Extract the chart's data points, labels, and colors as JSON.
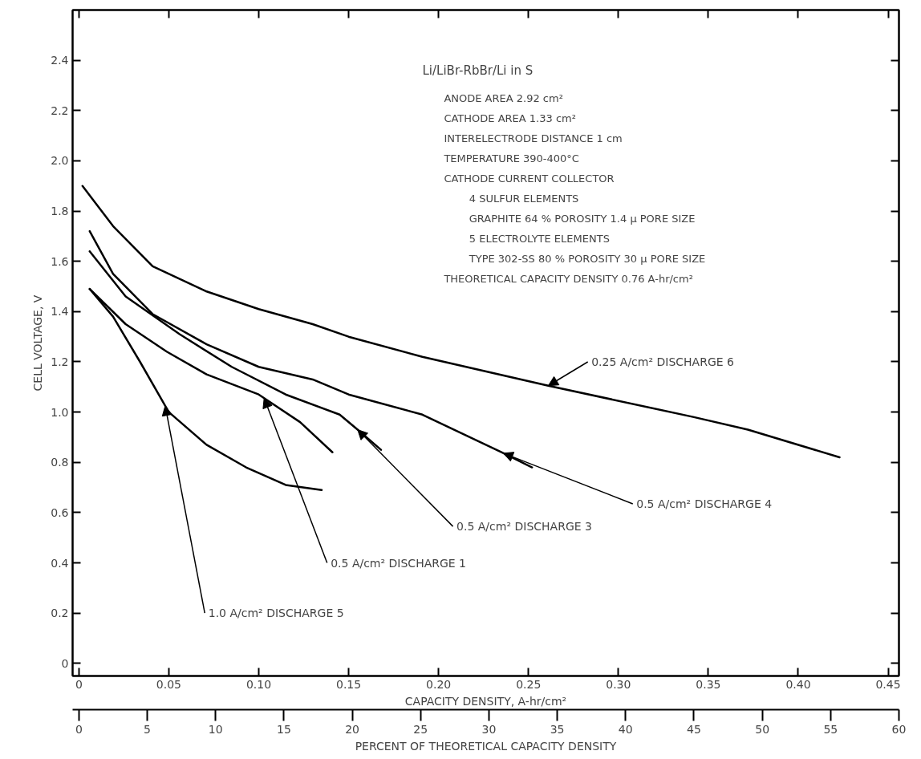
{
  "chart_data": {
    "type": "line",
    "xlabel": "CAPACITY DENSITY, A-hr/cm²",
    "ylabel": "CELL VOLTAGE, V",
    "x2label": "PERCENT OF THEORETICAL CAPACITY DENSITY",
    "xlim": [
      -0.0035,
      0.456
    ],
    "ylim": [
      -0.05,
      2.6
    ],
    "x2lim": [
      -0.46,
      60.0
    ],
    "xticks": [
      0,
      0.05,
      {
        "value": 0.1,
        "label": "0.10"
      },
      0.15,
      {
        "value": 0.2,
        "label": "0.20"
      },
      0.25,
      {
        "value": 0.3,
        "label": "0.30"
      },
      0.35,
      {
        "value": 0.4,
        "label": "0.40"
      },
      0.45
    ],
    "yticks": [
      0,
      0.2,
      0.4,
      0.6,
      0.8,
      {
        "value": 1,
        "label": "1.0"
      },
      1.2,
      1.4,
      1.6,
      1.8,
      {
        "value": 2,
        "label": "2.0"
      },
      2.2,
      2.4
    ],
    "x2ticks": [
      0,
      5,
      10,
      15,
      20,
      25,
      30,
      35,
      40,
      45,
      50,
      55,
      60
    ],
    "grid": false,
    "marker": "none",
    "line_style": "solid",
    "series": [
      {
        "name": "0.25 A/cm² DISCHARGE 6",
        "color": "#000000",
        "x": [
          0.002,
          0.019,
          0.041,
          0.071,
          0.1,
          0.13,
          0.15,
          0.191,
          0.261,
          0.342,
          0.372,
          0.423
        ],
        "values": [
          1.9,
          1.74,
          1.58,
          1.48,
          1.41,
          1.35,
          1.3,
          1.22,
          1.105,
          0.98,
          0.93,
          0.82
        ]
      },
      {
        "name": "0.5 A/cm² DISCHARGE 4",
        "color": "#000000",
        "x": [
          0.006,
          0.019,
          0.041,
          0.071,
          0.1,
          0.13,
          0.15,
          0.191,
          0.235,
          0.252
        ],
        "values": [
          1.72,
          1.55,
          1.39,
          1.27,
          1.18,
          1.13,
          1.07,
          0.99,
          0.84,
          0.78
        ]
      },
      {
        "name": "0.5 A/cm² DISCHARGE 3",
        "color": "#000000",
        "x": [
          0.006,
          0.026,
          0.056,
          0.085,
          0.115,
          0.145,
          0.155,
          0.168
        ],
        "values": [
          1.64,
          1.46,
          1.31,
          1.18,
          1.07,
          0.99,
          0.93,
          0.85
        ]
      },
      {
        "name": "0.5 A/cm² DISCHARGE 1",
        "color": "#000000",
        "x": [
          0.006,
          0.026,
          0.049,
          0.071,
          0.1,
          0.123,
          0.141
        ],
        "values": [
          1.49,
          1.35,
          1.24,
          1.15,
          1.07,
          0.96,
          0.84
        ]
      },
      {
        "name": "1.0 A/cm² DISCHARGE 5",
        "color": "#000000",
        "x": [
          0.006,
          0.019,
          0.034,
          0.05,
          0.071,
          0.093,
          0.115,
          0.135
        ],
        "values": [
          1.49,
          1.38,
          1.2,
          1.0,
          0.87,
          0.78,
          0.71,
          0.69
        ]
      }
    ],
    "annotations": [
      "Li/LiBr-RbBr/Li in S",
      "ANODE AREA 2.92 cm²",
      "CATHODE AREA 1.33 cm²",
      "INTERELECTRODE DISTANCE 1 cm",
      "TEMPERATURE 390-400°C",
      "CATHODE CURRENT COLLECTOR",
      "4 SULFUR ELEMENTS",
      "GRAPHITE 64 % POROSITY 1.4 μ PORE SIZE",
      "5 ELECTROLYTE ELEMENTS",
      "TYPE 302-SS 80 % POROSITY 30 μ PORE SIZE",
      "THEORETICAL CAPACITY DENSITY 0.76 A-hr/cm²"
    ]
  }
}
